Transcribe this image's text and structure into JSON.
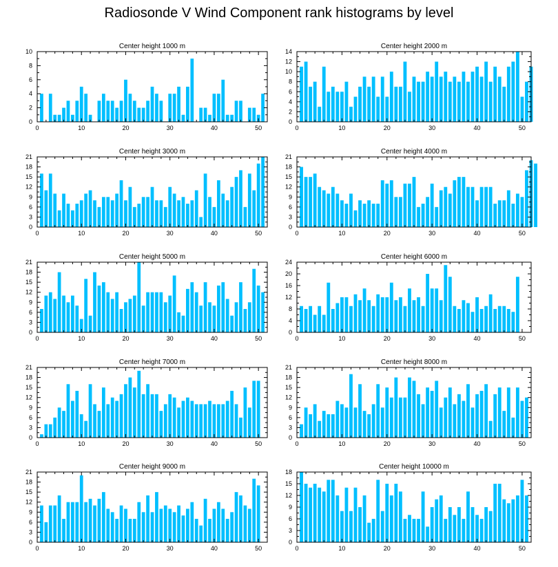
{
  "title": "Radiosonde V Wind Component rank histograms by level",
  "bar_color": "#00BFFF",
  "chart_data": [
    {
      "type": "bar",
      "title": "Center height 1000 m",
      "xlim": [
        0,
        52
      ],
      "ylim": [
        0,
        10
      ],
      "xticks": [
        0,
        10,
        20,
        30,
        40,
        50
      ],
      "yticks": [
        0,
        2,
        4,
        6,
        8,
        10
      ],
      "values": [
        4,
        0,
        4,
        1,
        1,
        2,
        3,
        1,
        3,
        5,
        4,
        1,
        0,
        3,
        4,
        3,
        3,
        2,
        3,
        6,
        4,
        3,
        2,
        2,
        3,
        5,
        4,
        3,
        0,
        4,
        4,
        5,
        1,
        5,
        9,
        0,
        2,
        2,
        1,
        4,
        4,
        6,
        1,
        1,
        3,
        3,
        0,
        2,
        2,
        1,
        4
      ]
    },
    {
      "type": "bar",
      "title": "Center height 2000 m",
      "xlim": [
        0,
        52
      ],
      "ylim": [
        0,
        14
      ],
      "xticks": [
        0,
        10,
        20,
        30,
        40,
        50
      ],
      "yticks": [
        0,
        2,
        4,
        6,
        8,
        10,
        12,
        14
      ],
      "values": [
        11,
        12,
        7,
        8,
        3,
        11,
        6,
        7,
        6,
        6,
        8,
        3,
        5,
        7,
        9,
        7,
        9,
        5,
        9,
        5,
        10,
        7,
        7,
        12,
        6,
        9,
        8,
        8,
        10,
        9,
        12,
        9,
        10,
        8,
        9,
        8,
        10,
        8,
        10,
        11,
        9,
        12,
        8,
        11,
        9,
        7,
        11,
        12,
        14,
        5,
        8,
        11
      ]
    },
    {
      "type": "bar",
      "title": "Center height 3000 m",
      "xlim": [
        0,
        52
      ],
      "ylim": [
        0,
        21
      ],
      "xticks": [
        0,
        10,
        20,
        30,
        40,
        50
      ],
      "yticks": [
        0,
        3,
        6,
        9,
        12,
        15,
        18,
        21
      ],
      "values": [
        16,
        11,
        16,
        10,
        5,
        10,
        7,
        5,
        7,
        8,
        10,
        11,
        8,
        6,
        9,
        9,
        8,
        10,
        14,
        8,
        12,
        6,
        7,
        9,
        9,
        12,
        8,
        8,
        6,
        12,
        10,
        8,
        9,
        7,
        8,
        11,
        3,
        16,
        9,
        6,
        14,
        10,
        8,
        12,
        15,
        17,
        6,
        16,
        11,
        19,
        21
      ]
    },
    {
      "type": "bar",
      "title": "Center height 4000 m",
      "xlim": [
        0,
        52
      ],
      "ylim": [
        0,
        21
      ],
      "xticks": [
        0,
        10,
        20,
        30,
        40,
        50
      ],
      "yticks": [
        0,
        3,
        6,
        9,
        12,
        15,
        18,
        21
      ],
      "values": [
        18,
        15,
        15,
        16,
        12,
        11,
        10,
        12,
        10,
        8,
        7,
        10,
        5,
        8,
        7,
        8,
        7,
        7,
        14,
        13,
        14,
        9,
        9,
        13,
        13,
        15,
        6,
        7,
        9,
        13,
        6,
        11,
        12,
        10,
        14,
        15,
        15,
        12,
        12,
        8,
        12,
        12,
        12,
        7,
        8,
        8,
        11,
        7,
        10,
        9,
        17,
        20,
        19
      ]
    },
    {
      "type": "bar",
      "title": "Center height 5000 m",
      "xlim": [
        0,
        52
      ],
      "ylim": [
        0,
        21
      ],
      "xticks": [
        0,
        10,
        20,
        30,
        40,
        50
      ],
      "yticks": [
        0,
        3,
        6,
        9,
        12,
        15,
        18,
        21
      ],
      "values": [
        7,
        11,
        12,
        10,
        18,
        11,
        9,
        11,
        8,
        4,
        16,
        5,
        18,
        14,
        15,
        12,
        10,
        12,
        7,
        9,
        10,
        11,
        21,
        8,
        12,
        12,
        12,
        12,
        9,
        11,
        17,
        6,
        5,
        13,
        15,
        12,
        8,
        15,
        9,
        8,
        14,
        15,
        10,
        5,
        9,
        15,
        7,
        9,
        19,
        14,
        12
      ]
    },
    {
      "type": "bar",
      "title": "Center height 6000 m",
      "xlim": [
        0,
        52
      ],
      "ylim": [
        0,
        24
      ],
      "xticks": [
        0,
        10,
        20,
        30,
        40,
        50
      ],
      "yticks": [
        0,
        4,
        8,
        12,
        16,
        20,
        24
      ],
      "values": [
        9,
        8,
        9,
        6,
        9,
        6,
        17,
        8,
        10,
        12,
        12,
        9,
        13,
        11,
        15,
        11,
        9,
        13,
        12,
        12,
        17,
        11,
        12,
        9,
        15,
        11,
        12,
        9,
        20,
        15,
        15,
        11,
        23,
        19,
        9,
        8,
        11,
        10,
        7,
        12,
        8,
        9,
        13,
        8,
        9,
        9,
        8,
        7,
        19
      ]
    },
    {
      "type": "bar",
      "title": "Center height 7000 m",
      "xlim": [
        0,
        52
      ],
      "ylim": [
        0,
        21
      ],
      "xticks": [
        0,
        10,
        20,
        30,
        40,
        50
      ],
      "yticks": [
        0,
        3,
        6,
        9,
        12,
        15,
        18,
        21
      ],
      "values": [
        1,
        4,
        4,
        6,
        9,
        8,
        16,
        11,
        14,
        7,
        5,
        16,
        10,
        8,
        15,
        10,
        12,
        11,
        13,
        16,
        18,
        15,
        20,
        13,
        16,
        13,
        13,
        8,
        10,
        13,
        12,
        9,
        11,
        12,
        11,
        10,
        10,
        10,
        11,
        10,
        10,
        10,
        11,
        14,
        10,
        6,
        15,
        9,
        17,
        17
      ]
    },
    {
      "type": "bar",
      "title": "Center height 8000 m",
      "xlim": [
        0,
        52
      ],
      "ylim": [
        0,
        21
      ],
      "xticks": [
        0,
        10,
        20,
        30,
        40,
        50
      ],
      "yticks": [
        0,
        3,
        6,
        9,
        12,
        15,
        18,
        21
      ],
      "values": [
        4,
        9,
        7,
        10,
        5,
        8,
        7,
        7,
        11,
        10,
        9,
        19,
        9,
        16,
        8,
        7,
        10,
        16,
        9,
        15,
        12,
        18,
        12,
        12,
        18,
        17,
        13,
        10,
        15,
        14,
        17,
        9,
        12,
        15,
        10,
        13,
        11,
        16,
        9,
        13,
        14,
        16,
        5,
        13,
        15,
        8,
        15,
        6,
        15,
        11,
        12
      ]
    },
    {
      "type": "bar",
      "title": "Center height 9000 m",
      "xlim": [
        0,
        52
      ],
      "ylim": [
        0,
        21
      ],
      "xticks": [
        0,
        10,
        20,
        30,
        40,
        50
      ],
      "yticks": [
        0,
        3,
        6,
        9,
        12,
        15,
        18,
        21
      ],
      "values": [
        11,
        6,
        11,
        11,
        14,
        7,
        12,
        12,
        12,
        20,
        12,
        13,
        11,
        13,
        15,
        10,
        9,
        7,
        11,
        10,
        7,
        7,
        12,
        9,
        14,
        9,
        15,
        10,
        11,
        10,
        9,
        11,
        8,
        10,
        12,
        7,
        5,
        13,
        7,
        10,
        12,
        10,
        7,
        9,
        15,
        14,
        11,
        10,
        19,
        17
      ]
    },
    {
      "type": "bar",
      "title": "Center height 10000 m",
      "xlim": [
        0,
        52
      ],
      "ylim": [
        0,
        18
      ],
      "xticks": [
        0,
        10,
        20,
        30,
        40,
        50
      ],
      "yticks": [
        0,
        3,
        6,
        9,
        12,
        15,
        18
      ],
      "values": [
        18,
        15,
        14,
        15,
        14,
        13,
        16,
        16,
        12,
        8,
        14,
        8,
        14,
        9,
        12,
        5,
        6,
        16,
        8,
        15,
        12,
        15,
        13,
        6,
        7,
        6,
        6,
        13,
        4,
        9,
        11,
        12,
        6,
        9,
        7,
        9,
        6,
        13,
        9,
        7,
        6,
        9,
        8,
        15,
        15,
        11,
        10,
        11,
        12,
        16,
        12
      ]
    }
  ]
}
